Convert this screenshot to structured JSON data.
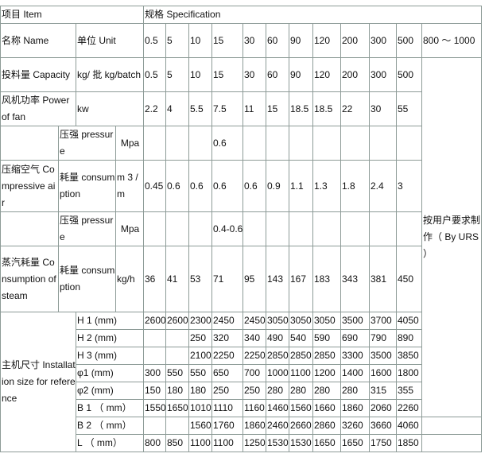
{
  "header": {
    "item": "项目 Item",
    "spec": "规格 Specification"
  },
  "name_row": {
    "name": "名称 Name",
    "unit": "单位 Unit",
    "values": [
      "0.5",
      "5",
      "10",
      "15",
      "30",
      "60",
      "90",
      "120",
      "200",
      "300",
      "500"
    ],
    "last": "800 ～ 1000"
  },
  "capacity_row": {
    "name": "投料量 Capacity",
    "unit": "kg/ 批 kg/batch",
    "values": [
      "0.5",
      "5",
      "10",
      "15",
      "30",
      "60",
      "90",
      "120",
      "200",
      "300",
      "500"
    ]
  },
  "custom_note": "按用户要求制作（ By URS ）",
  "power_row": {
    "name": "风机功率 Power of fan",
    "unit": "kw",
    "values": [
      "2.2",
      "4",
      "5.5",
      "7.5",
      "11",
      "15",
      "18.5",
      "18.5",
      "22",
      "30",
      "55"
    ]
  },
  "compressed_air": {
    "label": "压缩空气 Compressive air",
    "pressure": {
      "name": "压强 pressure",
      "unit": "Mpa",
      "values": [
        "",
        "",
        "",
        "0.6",
        "",
        "",
        "",
        "",
        "",
        "",
        ""
      ]
    },
    "consumption": {
      "name": "耗量 consumption",
      "unit": "m 3 /m",
      "values": [
        "0.45",
        "0.6",
        "0.6",
        "0.6",
        "0.6",
        "0.9",
        "1.1",
        "1.3",
        "1.8",
        "2.4",
        "3"
      ]
    }
  },
  "steam": {
    "label": "蒸汽耗量 Consumption of steam",
    "pressure": {
      "name": "压强 pressure",
      "unit": "Mpa",
      "values": [
        "",
        "",
        "",
        "0.4-0.6",
        "",
        "",
        "",
        "",
        "",
        "",
        ""
      ]
    },
    "consumption": {
      "name": "耗量 consumption",
      "unit": "kg/h",
      "values": [
        "36",
        "41",
        "53",
        "71",
        "95",
        "143",
        "167",
        "183",
        "343",
        "381",
        "450"
      ]
    }
  },
  "installation": {
    "label": "主机尺寸 Installation size for reference",
    "rows": [
      {
        "name": "H 1 (mm)",
        "values": [
          "2600",
          "2600",
          "2300",
          "2450",
          "2450",
          "3050",
          "3050",
          "3050",
          "3500",
          "3700",
          "4050"
        ]
      },
      {
        "name": "H 2 (mm)",
        "values": [
          "",
          "",
          "250",
          "320",
          "340",
          "490",
          "540",
          "590",
          "690",
          "790",
          "890"
        ]
      },
      {
        "name": "H 3 (mm)",
        "values": [
          "",
          "",
          "2100",
          "2250",
          "2250",
          "2850",
          "2850",
          "2850",
          "3300",
          "3500",
          "3850"
        ]
      },
      {
        "name": "φ1 (mm)",
        "values": [
          "300",
          "550",
          "550",
          "650",
          "700",
          "1000",
          "1100",
          "1200",
          "1400",
          "1600",
          "1800"
        ]
      },
      {
        "name": "φ2 (mm)",
        "values": [
          "150",
          "180",
          "180",
          "250",
          "250",
          "280",
          "280",
          "280",
          "280",
          "315",
          "355"
        ]
      },
      {
        "name": "B 1 （ mm）",
        "values": [
          "1550",
          "1650",
          "1010",
          "1110",
          "1160",
          "1460",
          "1560",
          "1660",
          "1860",
          "2060",
          "2260"
        ]
      },
      {
        "name": "B 2 （ mm）",
        "values": [
          "",
          "",
          "1560",
          "1760",
          "1860",
          "2460",
          "2660",
          "2860",
          "3260",
          "3660",
          "4060"
        ]
      },
      {
        "name": "L （ mm）",
        "values": [
          "800",
          "850",
          "1100",
          "1100",
          "1250",
          "1530",
          "1530",
          "1650",
          "1650",
          "1750",
          "1850"
        ]
      }
    ]
  }
}
